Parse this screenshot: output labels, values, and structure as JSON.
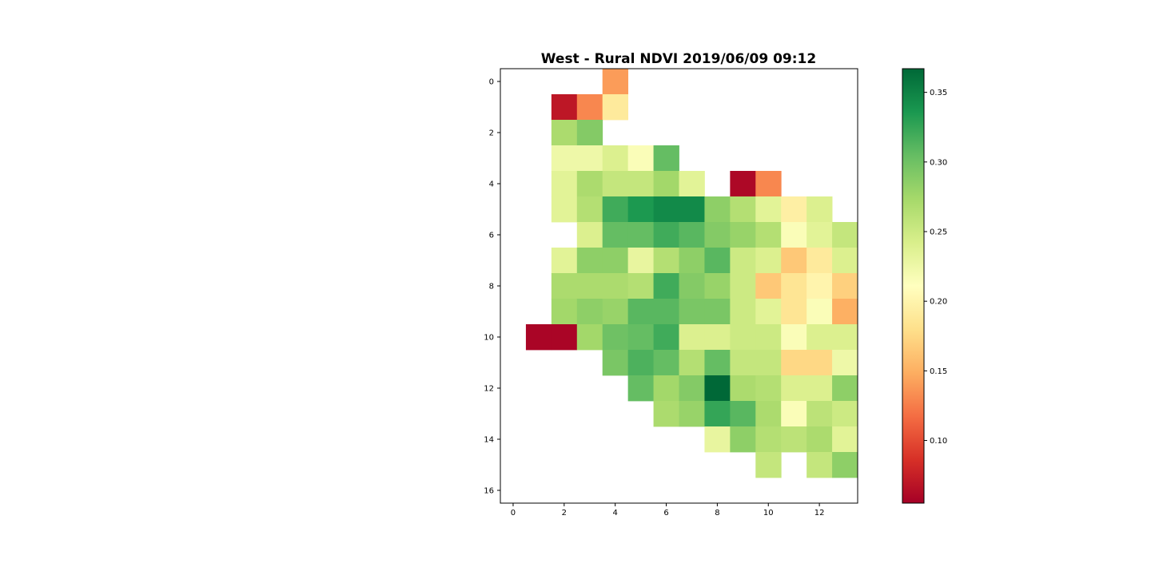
{
  "chart_data": {
    "type": "heatmap",
    "title": "West - Rural NDVI 2019/06/09 09:12",
    "xlabel": "",
    "ylabel": "",
    "colormap": "RdYlGn",
    "xlim": [
      -0.5,
      13.5
    ],
    "ylim": [
      16.5,
      -0.5
    ],
    "x_ticks": [
      0,
      2,
      4,
      6,
      8,
      10,
      12
    ],
    "y_ticks": [
      0,
      2,
      4,
      6,
      8,
      10,
      12,
      14,
      16
    ],
    "colorbar": {
      "min": 0.055,
      "max": 0.367,
      "ticks": [
        0.1,
        0.15,
        0.2,
        0.25,
        0.3,
        0.35
      ],
      "tick_labels": [
        "0.10",
        "0.15",
        "0.20",
        "0.25",
        "0.30",
        "0.35"
      ]
    },
    "values": [
      [
        null,
        null,
        null,
        null,
        0.14,
        null,
        null,
        null,
        null,
        null,
        null,
        null,
        null,
        null
      ],
      [
        null,
        null,
        0.07,
        0.13,
        0.19,
        null,
        null,
        null,
        null,
        null,
        null,
        null,
        null,
        null
      ],
      [
        null,
        null,
        0.27,
        0.29,
        null,
        null,
        null,
        null,
        null,
        null,
        null,
        null,
        null,
        null
      ],
      [
        null,
        null,
        0.225,
        0.225,
        0.24,
        0.215,
        0.305,
        null,
        null,
        null,
        null,
        null,
        null,
        null
      ],
      [
        null,
        null,
        0.235,
        0.27,
        0.255,
        0.255,
        0.275,
        0.235,
        null,
        0.06,
        0.13,
        null,
        null,
        null
      ],
      [
        null,
        null,
        0.235,
        0.265,
        0.32,
        0.335,
        0.345,
        0.345,
        0.285,
        0.265,
        0.235,
        0.195,
        0.24,
        null
      ],
      [
        null,
        null,
        null,
        0.24,
        0.305,
        0.305,
        0.32,
        0.31,
        0.29,
        0.28,
        0.265,
        0.215,
        0.235,
        0.255
      ],
      [
        null,
        null,
        0.235,
        0.285,
        0.285,
        0.23,
        0.265,
        0.285,
        0.31,
        0.25,
        0.24,
        0.165,
        0.19,
        0.24
      ],
      [
        null,
        null,
        0.27,
        0.27,
        0.27,
        0.265,
        0.32,
        0.29,
        0.28,
        0.25,
        0.165,
        0.185,
        0.2,
        0.17
      ],
      [
        null,
        null,
        0.275,
        0.285,
        0.28,
        0.31,
        0.31,
        0.295,
        0.295,
        0.25,
        0.235,
        0.185,
        0.215,
        0.15
      ],
      [
        null,
        0.058,
        0.058,
        0.275,
        0.3,
        0.305,
        0.32,
        0.24,
        0.24,
        0.25,
        0.25,
        0.215,
        0.24,
        0.24
      ],
      [
        null,
        null,
        null,
        null,
        0.295,
        0.315,
        0.305,
        0.265,
        0.305,
        0.255,
        0.255,
        0.175,
        0.175,
        0.225
      ],
      [
        null,
        null,
        null,
        null,
        null,
        0.305,
        0.275,
        0.29,
        0.367,
        0.27,
        0.265,
        0.24,
        0.24,
        0.285
      ],
      [
        null,
        null,
        null,
        null,
        null,
        null,
        0.27,
        0.28,
        0.325,
        0.31,
        0.27,
        0.215,
        0.26,
        0.25
      ],
      [
        null,
        null,
        null,
        null,
        null,
        null,
        null,
        null,
        0.23,
        0.285,
        0.265,
        0.26,
        0.27,
        0.235
      ],
      [
        null,
        null,
        null,
        null,
        null,
        null,
        null,
        null,
        null,
        null,
        0.255,
        null,
        0.255,
        0.285
      ],
      [
        null,
        null,
        null,
        null,
        null,
        null,
        null,
        null,
        null,
        null,
        null,
        null,
        null,
        null
      ]
    ]
  }
}
